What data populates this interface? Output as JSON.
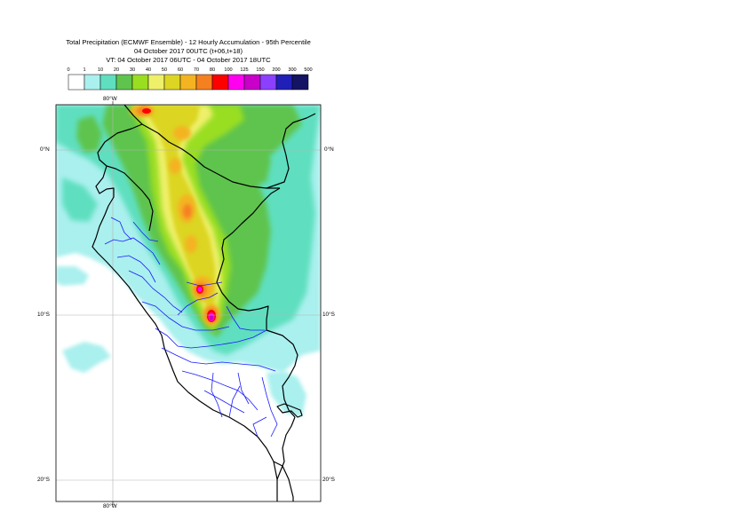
{
  "header": {
    "title": "Total Precipitation (ECMWF Ensemble) - 12 Hourly Accumulation - 95th Percentile",
    "base_time": "04 October 2017 00UTC (t+06,t+18)",
    "valid_time": "VT: 04 October 2017 06UTC - 04 October 2017 18UTC"
  },
  "legend": {
    "labels": [
      "0",
      "1",
      "10",
      "20",
      "30",
      "40",
      "50",
      "60",
      "70",
      "80",
      "100",
      "125",
      "150",
      "200",
      "300",
      "500"
    ],
    "colors": [
      "#ffffff",
      "#aaf0ee",
      "#5fdfbf",
      "#5fc44e",
      "#9ade21",
      "#eef06a",
      "#dcd524",
      "#f4b421",
      "#f58020",
      "#ff0000",
      "#ff00f0",
      "#c800c8",
      "#8c40ff",
      "#2020b8",
      "#141464"
    ]
  },
  "map": {
    "lon_label_top": "80°W",
    "lon_label_bottom": "80°W",
    "lat_labels_left": [
      "0°N",
      "10°S",
      "20°S"
    ],
    "lat_labels_right": [
      "0°N",
      "10°S",
      "20°S"
    ],
    "background_color": "#aaf0ee"
  }
}
